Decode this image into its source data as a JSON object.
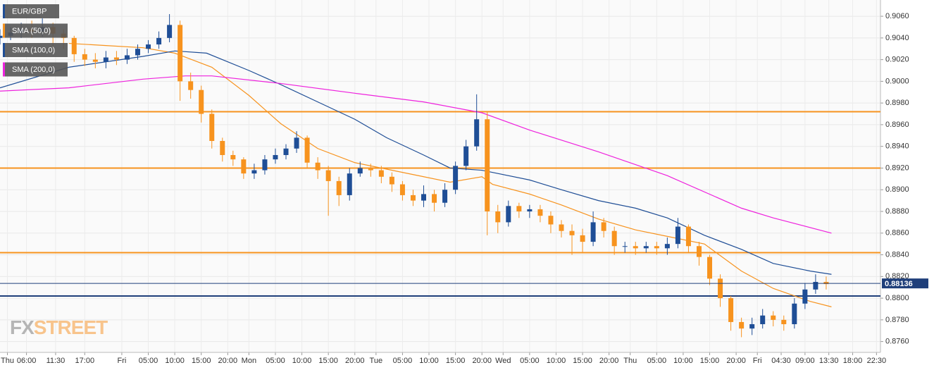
{
  "chart_data": {
    "type": "candlestick",
    "symbol": "EUR/GBP",
    "up_color": "#1f4e96",
    "down_color": "#f7931e",
    "x": [
      1,
      3,
      5,
      7,
      9,
      11,
      13,
      15,
      17,
      19,
      21,
      23,
      25,
      27,
      29,
      31,
      33,
      35,
      37,
      39,
      41,
      43,
      45,
      47,
      49,
      51,
      53,
      55,
      57,
      59,
      61,
      63,
      65,
      67,
      69,
      71,
      73,
      75,
      77,
      79,
      81,
      83,
      85,
      87,
      89,
      91,
      93,
      95,
      97,
      99,
      101,
      103,
      105,
      107,
      109,
      111,
      113,
      115,
      117,
      119,
      121,
      123,
      125,
      127,
      129,
      131,
      133,
      135,
      137,
      139,
      141,
      143,
      145,
      147,
      149,
      151,
      153,
      155,
      157
    ],
    "open": [
      0.904,
      0.9042,
      0.9045,
      0.9048,
      0.9046,
      0.905,
      0.9044,
      0.904,
      0.9025,
      0.902,
      0.9018,
      0.9022,
      0.902,
      0.9024,
      0.903,
      0.9034,
      0.904,
      0.9052,
      0.9,
      0.8992,
      0.897,
      0.8945,
      0.8932,
      0.8928,
      0.8915,
      0.8918,
      0.8928,
      0.8932,
      0.8938,
      0.8948,
      0.8925,
      0.8918,
      0.8908,
      0.8895,
      0.8915,
      0.892,
      0.8918,
      0.8912,
      0.8905,
      0.8895,
      0.889,
      0.8896,
      0.8888,
      0.89,
      0.8922,
      0.894,
      0.8965,
      0.888,
      0.887,
      0.8885,
      0.888,
      0.8882,
      0.8876,
      0.8868,
      0.8862,
      0.8858,
      0.8852,
      0.887,
      0.8862,
      0.8848,
      0.8848,
      0.8846,
      0.8848,
      0.8846,
      0.885,
      0.8866,
      0.8848,
      0.8838,
      0.8818,
      0.88,
      0.8778,
      0.8772,
      0.8776,
      0.8784,
      0.878,
      0.8776,
      0.8795,
      0.8808,
      0.8815
    ],
    "high": [
      0.9048,
      0.905,
      0.9054,
      0.9056,
      0.9058,
      0.9054,
      0.9048,
      0.9042,
      0.903,
      0.9026,
      0.9028,
      0.9028,
      0.903,
      0.9034,
      0.9038,
      0.9046,
      0.9062,
      0.9056,
      0.9008,
      0.8996,
      0.8974,
      0.8948,
      0.8936,
      0.893,
      0.8924,
      0.8932,
      0.8938,
      0.8942,
      0.8954,
      0.895,
      0.893,
      0.8922,
      0.8912,
      0.892,
      0.8926,
      0.8924,
      0.8922,
      0.8916,
      0.8908,
      0.89,
      0.8904,
      0.89,
      0.8906,
      0.8926,
      0.8946,
      0.8988,
      0.8972,
      0.8886,
      0.889,
      0.8888,
      0.8886,
      0.8886,
      0.888,
      0.8872,
      0.8868,
      0.8864,
      0.888,
      0.8874,
      0.8866,
      0.8852,
      0.8852,
      0.8852,
      0.8852,
      0.8856,
      0.8874,
      0.8868,
      0.8852,
      0.884,
      0.8822,
      0.8802,
      0.8782,
      0.8782,
      0.879,
      0.8788,
      0.8784,
      0.88,
      0.8814,
      0.8822,
      0.882
    ],
    "low": [
      0.9034,
      0.9038,
      0.904,
      0.904,
      0.9041,
      0.903,
      0.903,
      0.9018,
      0.9014,
      0.9012,
      0.9012,
      0.9015,
      0.9016,
      0.902,
      0.9026,
      0.903,
      0.9036,
      0.8982,
      0.8984,
      0.8962,
      0.8938,
      0.8926,
      0.8922,
      0.891,
      0.891,
      0.8914,
      0.8924,
      0.8928,
      0.8934,
      0.892,
      0.891,
      0.8876,
      0.8885,
      0.889,
      0.8912,
      0.8912,
      0.8906,
      0.8898,
      0.889,
      0.8885,
      0.8884,
      0.888,
      0.8884,
      0.8896,
      0.8918,
      0.8936,
      0.8858,
      0.886,
      0.8866,
      0.8874,
      0.8874,
      0.887,
      0.886,
      0.8856,
      0.884,
      0.8842,
      0.8848,
      0.8856,
      0.884,
      0.8842,
      0.884,
      0.8842,
      0.884,
      0.884,
      0.8846,
      0.8842,
      0.883,
      0.8812,
      0.8792,
      0.877,
      0.8764,
      0.8766,
      0.8772,
      0.8774,
      0.877,
      0.8772,
      0.879,
      0.8804,
      0.8808
    ],
    "close": [
      0.9042,
      0.9045,
      0.9048,
      0.9046,
      0.905,
      0.9044,
      0.904,
      0.9025,
      0.902,
      0.9018,
      0.9022,
      0.902,
      0.9024,
      0.903,
      0.9034,
      0.904,
      0.9052,
      0.9,
      0.8992,
      0.897,
      0.8945,
      0.8932,
      0.8928,
      0.8915,
      0.8918,
      0.8928,
      0.8932,
      0.8938,
      0.8948,
      0.8925,
      0.8918,
      0.8908,
      0.8895,
      0.8915,
      0.892,
      0.8918,
      0.8912,
      0.8905,
      0.8895,
      0.889,
      0.8896,
      0.8888,
      0.89,
      0.8922,
      0.894,
      0.8965,
      0.888,
      0.887,
      0.8885,
      0.888,
      0.8882,
      0.8876,
      0.8868,
      0.8862,
      0.8858,
      0.8852,
      0.887,
      0.8862,
      0.8848,
      0.8848,
      0.8846,
      0.8848,
      0.8846,
      0.885,
      0.8866,
      0.8848,
      0.8838,
      0.8818,
      0.88,
      0.8778,
      0.8772,
      0.8776,
      0.8784,
      0.878,
      0.8776,
      0.8795,
      0.8808,
      0.8815,
      0.8813
    ],
    "overlays": [
      {
        "name": "SMA (50,0)",
        "color": "#f7931e",
        "x": [
          14,
          21,
          28,
          34,
          41,
          48,
          54,
          61,
          68,
          74,
          81,
          86,
          92,
          94,
          101,
          107,
          114,
          121,
          127,
          134,
          141,
          147,
          154,
          158
        ],
        "values": [
          0.9035,
          0.9033,
          0.9031,
          0.9026,
          0.9013,
          0.8987,
          0.8961,
          0.8938,
          0.8925,
          0.8919,
          0.8912,
          0.8907,
          0.8912,
          0.8905,
          0.8896,
          0.8886,
          0.8873,
          0.8863,
          0.8857,
          0.885,
          0.8825,
          0.8809,
          0.8797,
          0.8792
        ]
      },
      {
        "name": "SMA (100,0)",
        "color": "#1f4e96",
        "x": [
          1,
          14,
          28,
          34,
          40,
          48,
          54,
          61,
          68,
          74,
          81,
          86,
          92,
          101,
          107,
          114,
          121,
          127,
          134,
          141,
          147,
          154,
          158
        ],
        "values": [
          0.8994,
          0.9013,
          0.9023,
          0.9028,
          0.9026,
          0.901,
          0.8997,
          0.8981,
          0.8965,
          0.8948,
          0.8932,
          0.892,
          0.8918,
          0.8909,
          0.89,
          0.889,
          0.8883,
          0.8874,
          0.8858,
          0.8845,
          0.8832,
          0.8825,
          0.8822
        ]
      },
      {
        "name": "SMA (200,0)",
        "color": "#ee22dd",
        "x": [
          1,
          14,
          28,
          36,
          41,
          54,
          68,
          81,
          92,
          101,
          114,
          127,
          141,
          147,
          158
        ],
        "values": [
          0.8991,
          0.8994,
          0.9002,
          0.9005,
          0.9005,
          0.8998,
          0.8989,
          0.8981,
          0.8971,
          0.8955,
          0.8935,
          0.8913,
          0.8883,
          0.8874,
          0.886
        ]
      }
    ],
    "levels": [
      {
        "value": 0.8972,
        "color": "#f7931e"
      },
      {
        "value": 0.892,
        "color": "#f7931e"
      },
      {
        "value": 0.8842,
        "color": "#f7931e"
      },
      {
        "value": 0.8802,
        "color": "#1f3f7a"
      }
    ],
    "last_price": 0.88136,
    "last_price_color": "#1f3f7a",
    "xlim": [
      1,
      167.25
    ],
    "ylim": [
      0.875,
      0.9075
    ],
    "xticks": [
      {
        "value": 2.4,
        "label": "Thu"
      },
      {
        "value": 6,
        "label": "06:00"
      },
      {
        "value": 11.5,
        "label": "11:30"
      },
      {
        "value": 17,
        "label": "17:00"
      },
      {
        "value": 24,
        "label": "Fri"
      },
      {
        "value": 29,
        "label": "05:00"
      },
      {
        "value": 34,
        "label": "10:00"
      },
      {
        "value": 39,
        "label": "15:00"
      },
      {
        "value": 44,
        "label": "20:00"
      },
      {
        "value": 48,
        "label": "Mon"
      },
      {
        "value": 53,
        "label": "05:00"
      },
      {
        "value": 58,
        "label": "10:00"
      },
      {
        "value": 63,
        "label": "15:00"
      },
      {
        "value": 68,
        "label": "20:00"
      },
      {
        "value": 72,
        "label": "Tue"
      },
      {
        "value": 77,
        "label": "05:00"
      },
      {
        "value": 82,
        "label": "10:00"
      },
      {
        "value": 87,
        "label": "15:00"
      },
      {
        "value": 92,
        "label": "20:00"
      },
      {
        "value": 96,
        "label": "Wed"
      },
      {
        "value": 101,
        "label": "05:00"
      },
      {
        "value": 106,
        "label": "10:00"
      },
      {
        "value": 111,
        "label": "15:00"
      },
      {
        "value": 116,
        "label": "20:00"
      },
      {
        "value": 120,
        "label": "Thu"
      },
      {
        "value": 125,
        "label": "05:00"
      },
      {
        "value": 130,
        "label": "10:00"
      },
      {
        "value": 135,
        "label": "15:00"
      },
      {
        "value": 140,
        "label": "20:00"
      },
      {
        "value": 144,
        "label": "Fri"
      },
      {
        "value": 148.5,
        "label": "04:30"
      },
      {
        "value": 153,
        "label": "09:00"
      },
      {
        "value": 157.5,
        "label": "13:30"
      },
      {
        "value": 162,
        "label": "18:00"
      },
      {
        "value": 166.5,
        "label": "22:30"
      }
    ],
    "yticks": [
      {
        "value": 0.876,
        "label": "0.8760"
      },
      {
        "value": 0.878,
        "label": "0.8780"
      },
      {
        "value": 0.88,
        "label": "0.8800"
      },
      {
        "value": 0.882,
        "label": "0.8820"
      },
      {
        "value": 0.884,
        "label": "0.8840"
      },
      {
        "value": 0.886,
        "label": "0.8860"
      },
      {
        "value": 0.888,
        "label": "0.8880"
      },
      {
        "value": 0.89,
        "label": "0.8900"
      },
      {
        "value": 0.892,
        "label": "0.8920"
      },
      {
        "value": 0.894,
        "label": "0.8940"
      },
      {
        "value": 0.896,
        "label": "0.8960"
      },
      {
        "value": 0.898,
        "label": "0.8980"
      },
      {
        "value": 0.9,
        "label": "0.9000"
      },
      {
        "value": 0.902,
        "label": "0.9020"
      },
      {
        "value": 0.904,
        "label": "0.9040"
      },
      {
        "value": 0.906,
        "label": "0.9060"
      }
    ],
    "grid": true,
    "watermark": [
      "FX",
      "STREET"
    ]
  }
}
